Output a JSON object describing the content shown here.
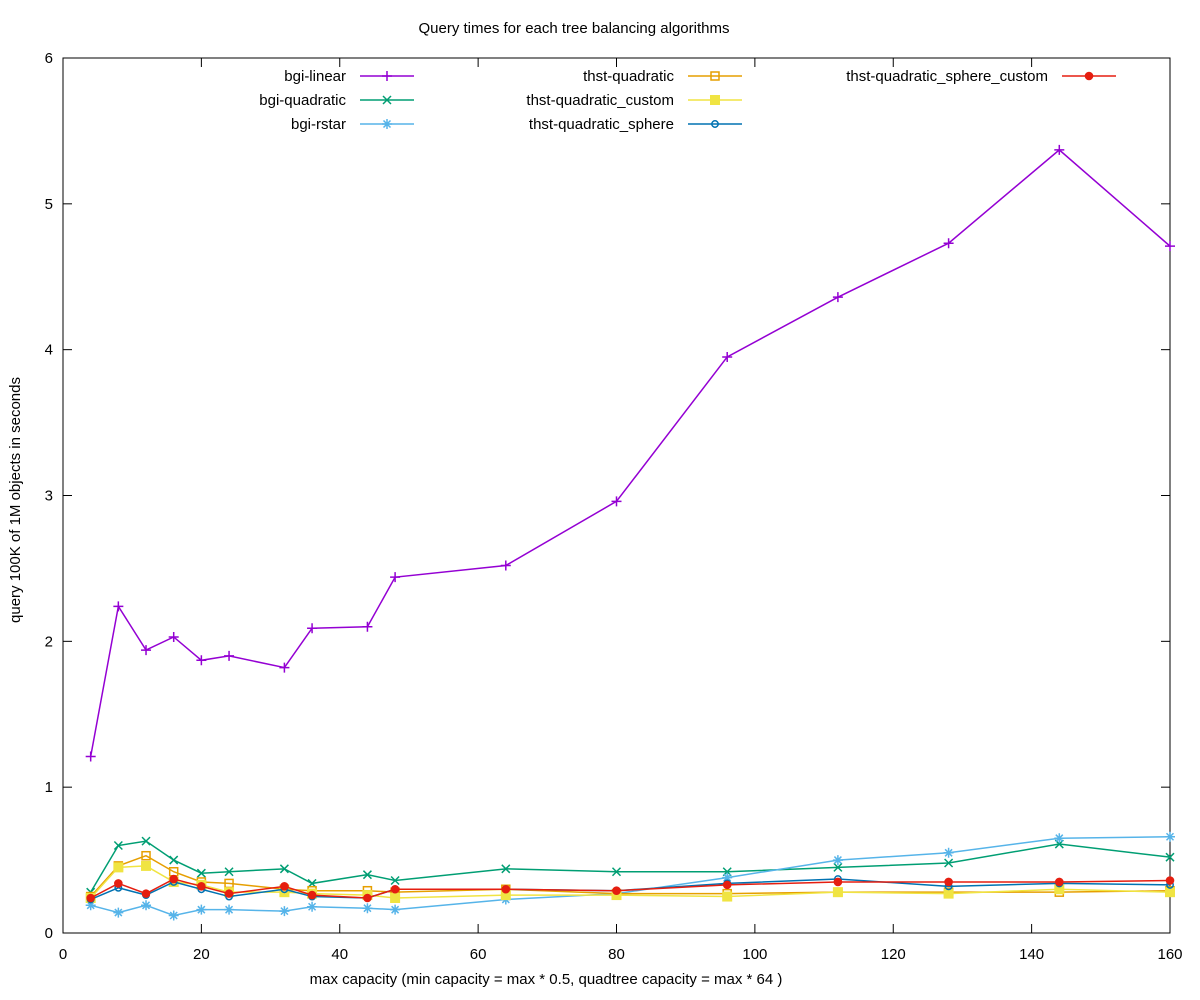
{
  "chart_data": {
    "type": "line",
    "title": "Query times for each tree balancing algorithms",
    "xlabel": "max capacity (min capacity = max * 0.5, quadtree capacity = max * 64 )",
    "ylabel": "query 100K of 1M objects in seconds",
    "xlim": [
      0,
      160
    ],
    "ylim": [
      0,
      6
    ],
    "xticks": [
      0,
      20,
      40,
      60,
      80,
      100,
      120,
      140,
      160
    ],
    "yticks": [
      0,
      1,
      2,
      3,
      4,
      5,
      6
    ],
    "grid": false,
    "legend_position": "top-inside-three-columns",
    "x": [
      4,
      8,
      12,
      16,
      20,
      24,
      32,
      36,
      44,
      48,
      64,
      80,
      96,
      112,
      128,
      144,
      160
    ],
    "series": [
      {
        "name": "bgi-linear",
        "color": "#9400d3",
        "marker": "plus",
        "values": [
          1.21,
          2.24,
          1.94,
          2.03,
          1.87,
          1.9,
          1.82,
          2.09,
          2.1,
          2.44,
          2.52,
          2.96,
          3.95,
          4.36,
          4.73,
          5.37,
          4.71
        ]
      },
      {
        "name": "bgi-quadratic",
        "color": "#009e73",
        "marker": "cross",
        "values": [
          0.28,
          0.6,
          0.63,
          0.5,
          0.41,
          0.42,
          0.44,
          0.34,
          0.4,
          0.36,
          0.44,
          0.42,
          0.42,
          0.45,
          0.48,
          0.61,
          0.52
        ]
      },
      {
        "name": "bgi-rstar",
        "color": "#56b4e9",
        "marker": "asterisk",
        "values": [
          0.19,
          0.14,
          0.19,
          0.12,
          0.16,
          0.16,
          0.15,
          0.18,
          0.17,
          0.16,
          0.23,
          0.27,
          0.38,
          0.5,
          0.55,
          0.65,
          0.66
        ]
      },
      {
        "name": "thst-quadratic",
        "color": "#e69f00",
        "marker": "square-open",
        "values": [
          0.25,
          0.46,
          0.53,
          0.42,
          0.35,
          0.34,
          0.3,
          0.29,
          0.29,
          0.28,
          0.3,
          0.27,
          0.27,
          0.28,
          0.28,
          0.28,
          0.29
        ]
      },
      {
        "name": "thst-quadratic_custom",
        "color": "#f0e442",
        "marker": "square-filled",
        "values": [
          0.24,
          0.45,
          0.46,
          0.35,
          0.33,
          0.28,
          0.28,
          0.27,
          0.26,
          0.24,
          0.26,
          0.26,
          0.25,
          0.28,
          0.27,
          0.3,
          0.28
        ]
      },
      {
        "name": "thst-quadratic_sphere",
        "color": "#0072b2",
        "marker": "circle-open",
        "values": [
          0.23,
          0.31,
          0.26,
          0.35,
          0.3,
          0.25,
          0.3,
          0.25,
          0.24,
          0.3,
          0.3,
          0.29,
          0.34,
          0.37,
          0.32,
          0.34,
          0.33
        ]
      },
      {
        "name": "thst-quadratic_sphere_custom",
        "color": "#e51e10",
        "marker": "circle-filled",
        "values": [
          0.24,
          0.34,
          0.27,
          0.37,
          0.32,
          0.27,
          0.32,
          0.26,
          0.24,
          0.3,
          0.3,
          0.29,
          0.33,
          0.35,
          0.35,
          0.35,
          0.36
        ]
      }
    ],
    "legend_columns": [
      [
        "bgi-linear",
        "bgi-quadratic",
        "bgi-rstar"
      ],
      [
        "thst-quadratic",
        "thst-quadratic_custom",
        "thst-quadratic_sphere"
      ],
      [
        "thst-quadratic_sphere_custom"
      ]
    ]
  }
}
